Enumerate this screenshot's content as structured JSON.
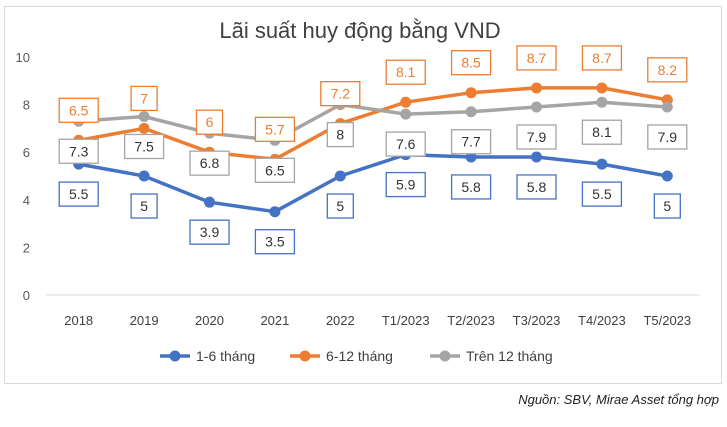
{
  "chart_data": {
    "type": "line",
    "title": "Lãi suất huy động bằng VND",
    "categories": [
      "2018",
      "2019",
      "2020",
      "2021",
      "2022",
      "T1/2023",
      "T2/2023",
      "T3/2023",
      "T4/2023",
      "T5/2023"
    ],
    "ylim": [
      0,
      10
    ],
    "yticks": [
      "0",
      "2",
      "4",
      "6",
      "8",
      "10"
    ],
    "grid": false,
    "legend_position": "bottom",
    "series": [
      {
        "name": "1-6 tháng",
        "color": "#4472C4",
        "values": [
          5.5,
          5,
          3.9,
          3.5,
          5,
          5.9,
          5.8,
          5.8,
          5.5,
          5
        ],
        "labels": [
          "5.5",
          "5",
          "3.9",
          "3.5",
          "5",
          "5.9",
          "5.8",
          "5.8",
          "5.5",
          "5"
        ]
      },
      {
        "name": "6-12 tháng",
        "color": "#ED7D31",
        "values": [
          6.5,
          7,
          6,
          5.7,
          7.2,
          8.1,
          8.5,
          8.7,
          8.7,
          8.2
        ],
        "labels": [
          "6.5",
          "7",
          "6",
          "5.7",
          "7.2",
          "8.1",
          "8.5",
          "8.7",
          "8.7",
          "8.2"
        ]
      },
      {
        "name": "Trên 12 tháng",
        "color": "#A5A5A5",
        "values": [
          7.3,
          7.5,
          6.8,
          6.5,
          8,
          7.6,
          7.7,
          7.9,
          8.1,
          7.9
        ],
        "labels": [
          "7.3",
          "7.5",
          "6.8",
          "6.5",
          "8",
          "7.6",
          "7.7",
          "7.9",
          "8.1",
          "7.9"
        ]
      }
    ]
  },
  "source_note": "Nguồn: SBV, Mirae Asset tổng hợp"
}
